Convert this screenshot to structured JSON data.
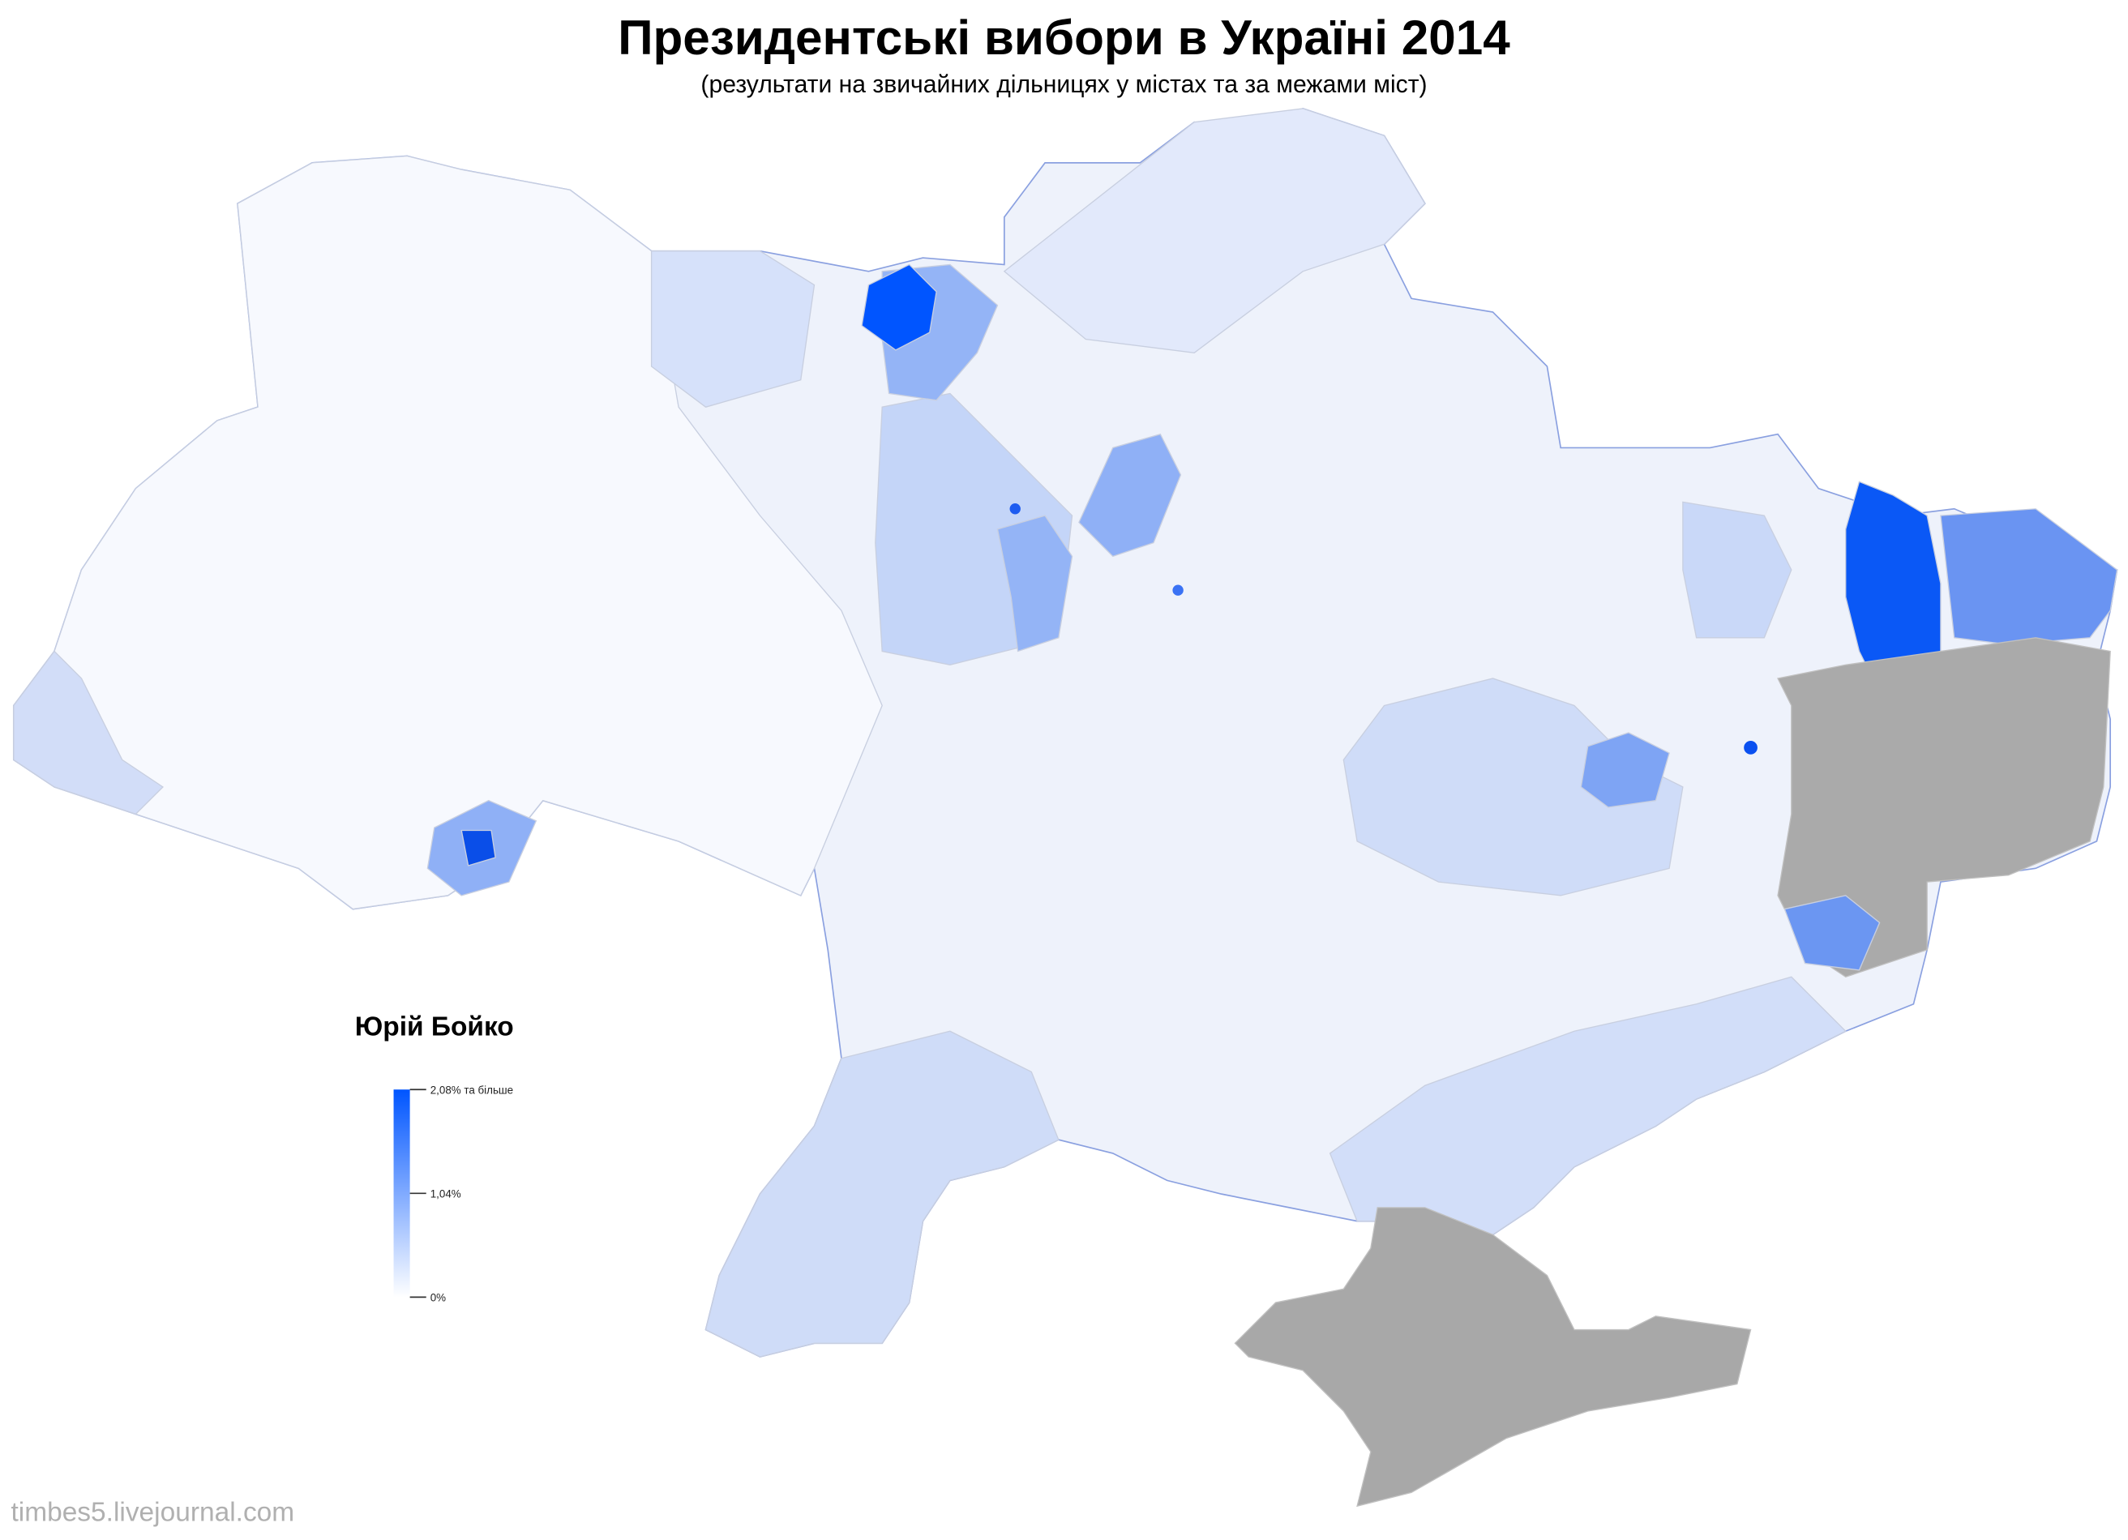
{
  "header": {
    "title": "Президентські вибори в Україні 2014",
    "subtitle": "(результати на звичайних дільницях у містах та за межами міст)"
  },
  "legend": {
    "title": "Юрій Бойко",
    "color_low": "#ffffff",
    "color_high": "#0055ff",
    "ticks": [
      {
        "value": 2.08,
        "label": "2,08% та більше"
      },
      {
        "value": 1.04,
        "label": "1,04%"
      },
      {
        "value": 0,
        "label": "0%"
      }
    ]
  },
  "footer": {
    "credit": "timbes5.livejournal.com"
  }
}
